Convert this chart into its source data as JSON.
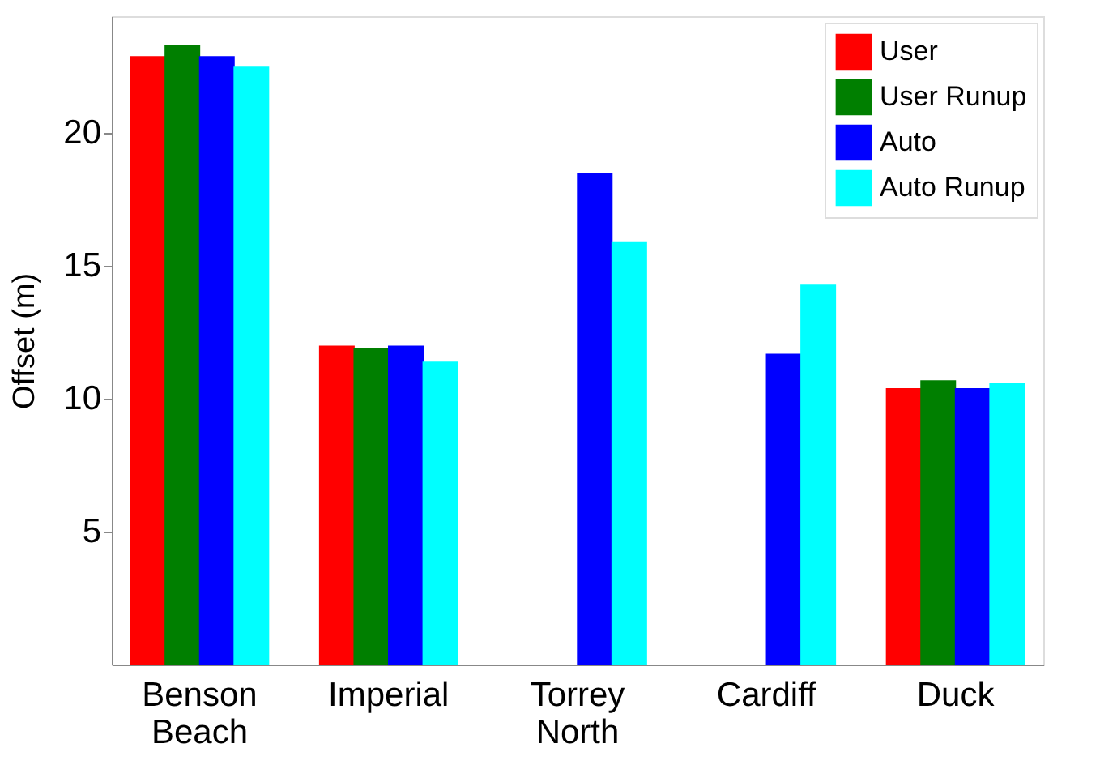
{
  "chart_data": {
    "type": "bar",
    "ylabel": "Offset (m)",
    "categories": [
      "Benson Beach",
      "Imperial",
      "Torrey North",
      "Cardiff",
      "Duck"
    ],
    "series": [
      {
        "name": "User",
        "color": "#ff0000",
        "values": [
          22.9,
          12.0,
          null,
          null,
          10.4
        ]
      },
      {
        "name": "User Runup",
        "color": "#007f00",
        "values": [
          23.3,
          11.9,
          null,
          null,
          10.7
        ]
      },
      {
        "name": "Auto",
        "color": "#0000ff",
        "values": [
          22.9,
          12.0,
          18.5,
          11.7,
          10.4
        ]
      },
      {
        "name": "Auto Runup",
        "color": "#00ffff",
        "values": [
          22.5,
          11.4,
          15.9,
          14.3,
          10.6
        ]
      }
    ],
    "ylim": [
      0,
      24.4
    ],
    "yticks": [
      5,
      10,
      15,
      20
    ],
    "grid": false,
    "legend": "top right"
  }
}
